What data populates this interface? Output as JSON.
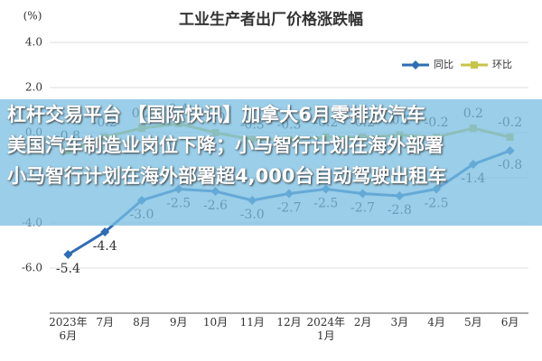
{
  "chart_data": {
    "type": "line",
    "title": "工业生产者出厂价格涨跌幅",
    "y_label": "(%)",
    "categories": [
      "2023年\n6月",
      "7月",
      "8月",
      "9月",
      "10月",
      "11月",
      "12月",
      "2024年\n1月",
      "2月",
      "3月",
      "4月",
      "5月",
      "6月"
    ],
    "series": [
      {
        "name": "同比",
        "color": "#2e6db4",
        "values": [
          -5.4,
          -4.4,
          -3.0,
          -2.5,
          -2.6,
          -3.0,
          -2.7,
          -2.5,
          -2.7,
          -2.8,
          -2.5,
          -1.4,
          -0.8
        ],
        "value_labels": [
          "-5.4",
          "-4.4",
          "-3.0",
          "-2.5",
          "-2.6",
          "-3.0",
          "-2.7",
          "-2.5",
          "-2.7",
          "-2.8",
          "-2.5",
          "-1.4",
          "-0.8"
        ]
      },
      {
        "name": "环比",
        "color": "#c8c44a",
        "values": [
          -0.8,
          -0.2,
          0.2,
          0.4,
          0.0,
          -0.3,
          -0.3,
          -0.2,
          -0.2,
          -0.1,
          -0.2,
          0.2,
          -0.2
        ],
        "value_labels": [
          "-0.8",
          "-0.2",
          "0.2",
          "0.4",
          "0.0",
          "-0.3",
          "-0.3",
          "-0.2",
          "-0.2",
          "-0.1",
          "-0.2",
          "0.2",
          "-0.2"
        ]
      }
    ],
    "ylim": [
      -8,
      4
    ],
    "yticks": [
      {
        "value": -6,
        "label": "-6.0"
      },
      {
        "value": -4,
        "label": "-4.0"
      },
      {
        "value": -2,
        "label": "-2.0"
      },
      {
        "value": 0,
        "label": "0.0"
      },
      {
        "value": 2,
        "label": "2.0"
      },
      {
        "value": 4,
        "label": "4.0"
      }
    ],
    "grid": true,
    "legend": "top-right"
  },
  "banner": {
    "lines": [
      "杠杆交易平台 【国际快讯】加拿大6月零排放汽车",
      "美国汽车制造业岗位下降；小马智行计划在海外部署",
      "小马智行计划在海外部署超4,000台自动驾驶出租车"
    ]
  }
}
